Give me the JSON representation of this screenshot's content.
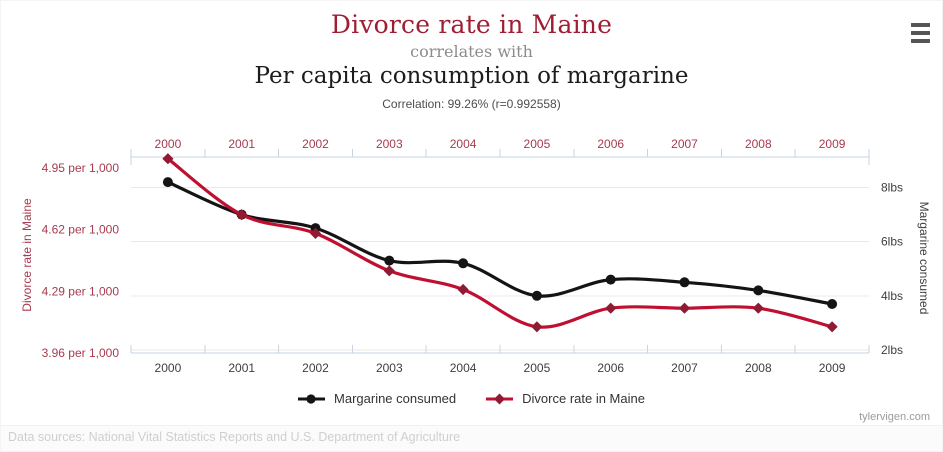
{
  "page": {
    "title_top": "Divorce rate in Maine",
    "connector": "correlates with",
    "title_bottom": "Per capita consumption of margarine",
    "correlation_note": "Correlation: 99.26% (r=0.992558)",
    "watermark": "tylervigen.com",
    "data_sources": "Data sources: National Vital Statistics Reports and U.S. Department of Agriculture"
  },
  "legend": [
    {
      "label": "Margarine consumed",
      "marker": "circle",
      "color": "#141414"
    },
    {
      "label": "Divorce rate in Maine",
      "marker": "diamond",
      "line_color": "#c01031",
      "marker_color": "#911a33"
    }
  ],
  "chart_data": {
    "type": "line",
    "x": [
      2000,
      2001,
      2002,
      2003,
      2004,
      2005,
      2006,
      2007,
      2008,
      2009
    ],
    "series": [
      {
        "name": "Margarine consumed",
        "axis": "right",
        "line_color": "#141414",
        "marker": "circle",
        "marker_color": "#141414",
        "values": [
          8.2,
          7.0,
          6.5,
          5.3,
          5.2,
          4.0,
          4.6,
          4.5,
          4.2,
          3.7
        ],
        "unit": "lbs"
      },
      {
        "name": "Divorce rate in Maine",
        "axis": "left",
        "line_color": "#c01031",
        "marker": "diamond",
        "marker_color": "#911a33",
        "values": [
          5.0,
          4.7,
          4.6,
          4.4,
          4.3,
          4.1,
          4.2,
          4.2,
          4.2,
          4.1
        ],
        "unit": "per 1,000"
      }
    ],
    "left_axis": {
      "title": "Divorce rate in Maine",
      "color": "#a73b4f",
      "tick_labels": [
        "4.95 per 1,000",
        "4.62 per 1,000",
        "4.29 per 1,000",
        "3.96 per 1,000"
      ],
      "tick_values": [
        4.95,
        4.62,
        4.29,
        3.96
      ],
      "min": 3.96,
      "max": 4.95
    },
    "right_axis": {
      "title": "Margarine consumed",
      "color": "#3f3f3f",
      "tick_labels": [
        "8lbs",
        "6lbs",
        "4lbs",
        "2lbs"
      ],
      "tick_values": [
        8,
        6,
        4,
        2
      ],
      "min": 2,
      "max": 8
    },
    "x_axis": {
      "top_label_color": "#a73b4f",
      "bottom_label_color": "#3f3f3f",
      "line_color": "#c7d3e0"
    },
    "grid": {
      "show_horizontal": true,
      "color": "#e9e9e9"
    },
    "legend_position": "bottom"
  }
}
